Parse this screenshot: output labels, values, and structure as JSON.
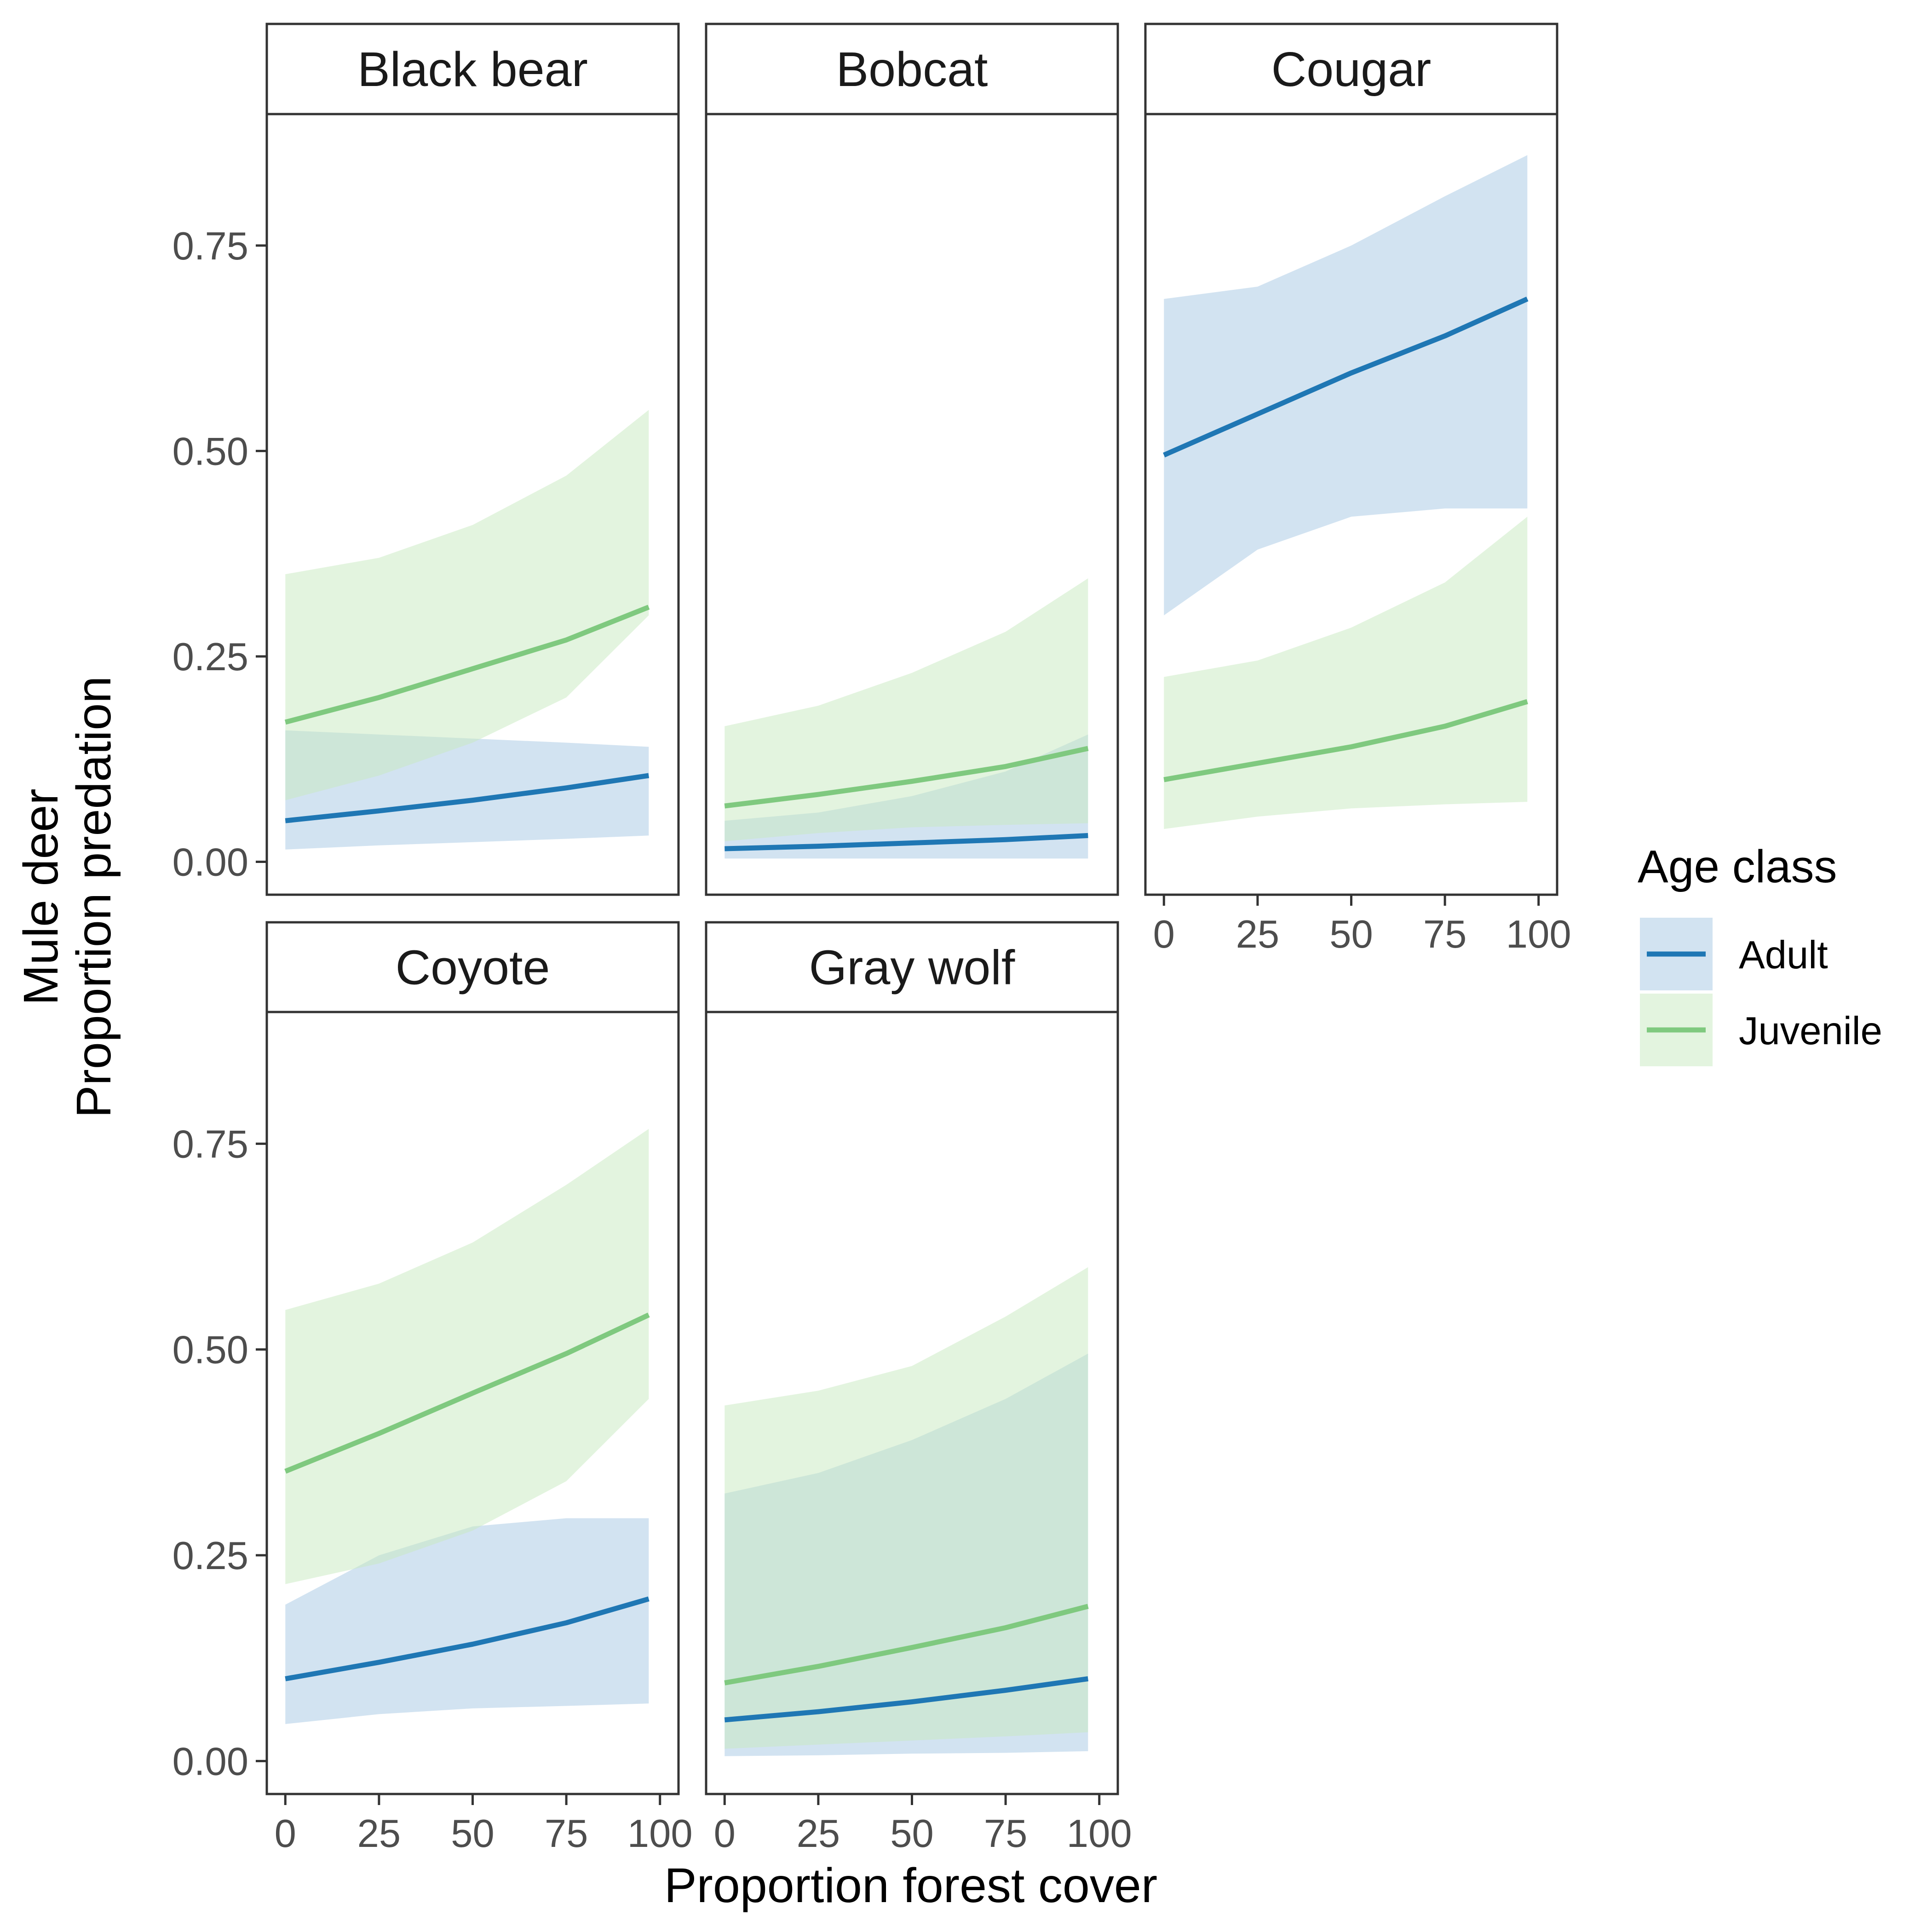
{
  "chart_data": {
    "type": "line",
    "y_label_lines": [
      "Mule deer",
      "Proportion predation"
    ],
    "xlabel": "Proportion forest cover",
    "xlim": [
      0,
      100
    ],
    "ylim": [
      -0.04,
      0.91
    ],
    "x_ticks": [
      0,
      25,
      50,
      75,
      100
    ],
    "y_ticks": [
      0.0,
      0.25,
      0.5,
      0.75
    ],
    "x_tick_labels": [
      "0",
      "25",
      "50",
      "75",
      "100"
    ],
    "y_tick_labels": [
      "0.00",
      "0.25",
      "0.50",
      "0.75"
    ],
    "grid": false,
    "legend": {
      "title": "Age class",
      "placement": "right",
      "entries": [
        {
          "label": "Adult",
          "line_color": "#1f77b4",
          "fill_color": "#a6c8e3"
        },
        {
          "label": "Juvenile",
          "line_color": "#7fc97f",
          "fill_color": "#c7e9c0"
        }
      ]
    },
    "panels": [
      {
        "title": "Black bear",
        "series": [
          {
            "name": "Adult",
            "x": [
              0,
              25,
              50,
              75,
              97
            ],
            "y": [
              0.05,
              0.062,
              0.075,
              0.09,
              0.105
            ],
            "lower": [
              0.015,
              0.02,
              0.024,
              0.028,
              0.032
            ],
            "upper": [
              0.16,
              0.155,
              0.15,
              0.145,
              0.14
            ]
          },
          {
            "name": "Juvenile",
            "x": [
              0,
              25,
              50,
              75,
              97
            ],
            "y": [
              0.17,
              0.2,
              0.235,
              0.27,
              0.31
            ],
            "lower": [
              0.075,
              0.105,
              0.145,
              0.2,
              0.3
            ],
            "upper": [
              0.35,
              0.37,
              0.41,
              0.47,
              0.55
            ]
          }
        ]
      },
      {
        "title": "Bobcat",
        "series": [
          {
            "name": "Adult",
            "x": [
              0,
              25,
              50,
              75,
              97
            ],
            "y": [
              0.016,
              0.019,
              0.023,
              0.027,
              0.032
            ],
            "lower": [
              0.004,
              0.004,
              0.004,
              0.004,
              0.004
            ],
            "upper": [
              0.05,
              0.06,
              0.08,
              0.11,
              0.155
            ]
          },
          {
            "name": "Juvenile",
            "x": [
              0,
              25,
              50,
              75,
              97
            ],
            "y": [
              0.068,
              0.082,
              0.098,
              0.116,
              0.138
            ],
            "lower": [
              0.025,
              0.035,
              0.042,
              0.045,
              0.047
            ],
            "upper": [
              0.165,
              0.19,
              0.23,
              0.28,
              0.345
            ]
          }
        ]
      },
      {
        "title": "Cougar",
        "series": [
          {
            "name": "Adult",
            "x": [
              0,
              25,
              50,
              75,
              97
            ],
            "y": [
              0.495,
              0.545,
              0.595,
              0.64,
              0.685
            ],
            "lower": [
              0.3,
              0.38,
              0.42,
              0.43,
              0.43
            ],
            "upper": [
              0.685,
              0.7,
              0.75,
              0.81,
              0.86
            ]
          },
          {
            "name": "Juvenile",
            "x": [
              0,
              25,
              50,
              75,
              97
            ],
            "y": [
              0.1,
              0.12,
              0.14,
              0.165,
              0.195
            ],
            "lower": [
              0.04,
              0.055,
              0.065,
              0.07,
              0.073
            ],
            "upper": [
              0.225,
              0.245,
              0.285,
              0.34,
              0.42
            ]
          }
        ]
      },
      {
        "title": "Coyote",
        "series": [
          {
            "name": "Adult",
            "x": [
              0,
              25,
              50,
              75,
              97
            ],
            "y": [
              0.1,
              0.12,
              0.142,
              0.168,
              0.197
            ],
            "lower": [
              0.045,
              0.057,
              0.064,
              0.067,
              0.07
            ],
            "upper": [
              0.19,
              0.25,
              0.285,
              0.295,
              0.295
            ]
          },
          {
            "name": "Juvenile",
            "x": [
              0,
              25,
              50,
              75,
              97
            ],
            "y": [
              0.352,
              0.398,
              0.447,
              0.495,
              0.542
            ],
            "lower": [
              0.215,
              0.24,
              0.28,
              0.34,
              0.44
            ],
            "upper": [
              0.548,
              0.58,
              0.63,
              0.7,
              0.768
            ]
          }
        ]
      },
      {
        "title": "Gray wolf",
        "series": [
          {
            "name": "Adult",
            "x": [
              0,
              25,
              50,
              75,
              97
            ],
            "y": [
              0.05,
              0.06,
              0.072,
              0.086,
              0.1
            ],
            "lower": [
              0.006,
              0.007,
              0.009,
              0.01,
              0.012
            ],
            "upper": [
              0.325,
              0.35,
              0.39,
              0.44,
              0.495
            ]
          },
          {
            "name": "Juvenile",
            "x": [
              0,
              25,
              50,
              75,
              97
            ],
            "y": [
              0.095,
              0.115,
              0.138,
              0.162,
              0.188
            ],
            "lower": [
              0.015,
              0.02,
              0.025,
              0.03,
              0.035
            ],
            "upper": [
              0.432,
              0.45,
              0.48,
              0.54,
              0.6
            ]
          }
        ]
      }
    ]
  }
}
